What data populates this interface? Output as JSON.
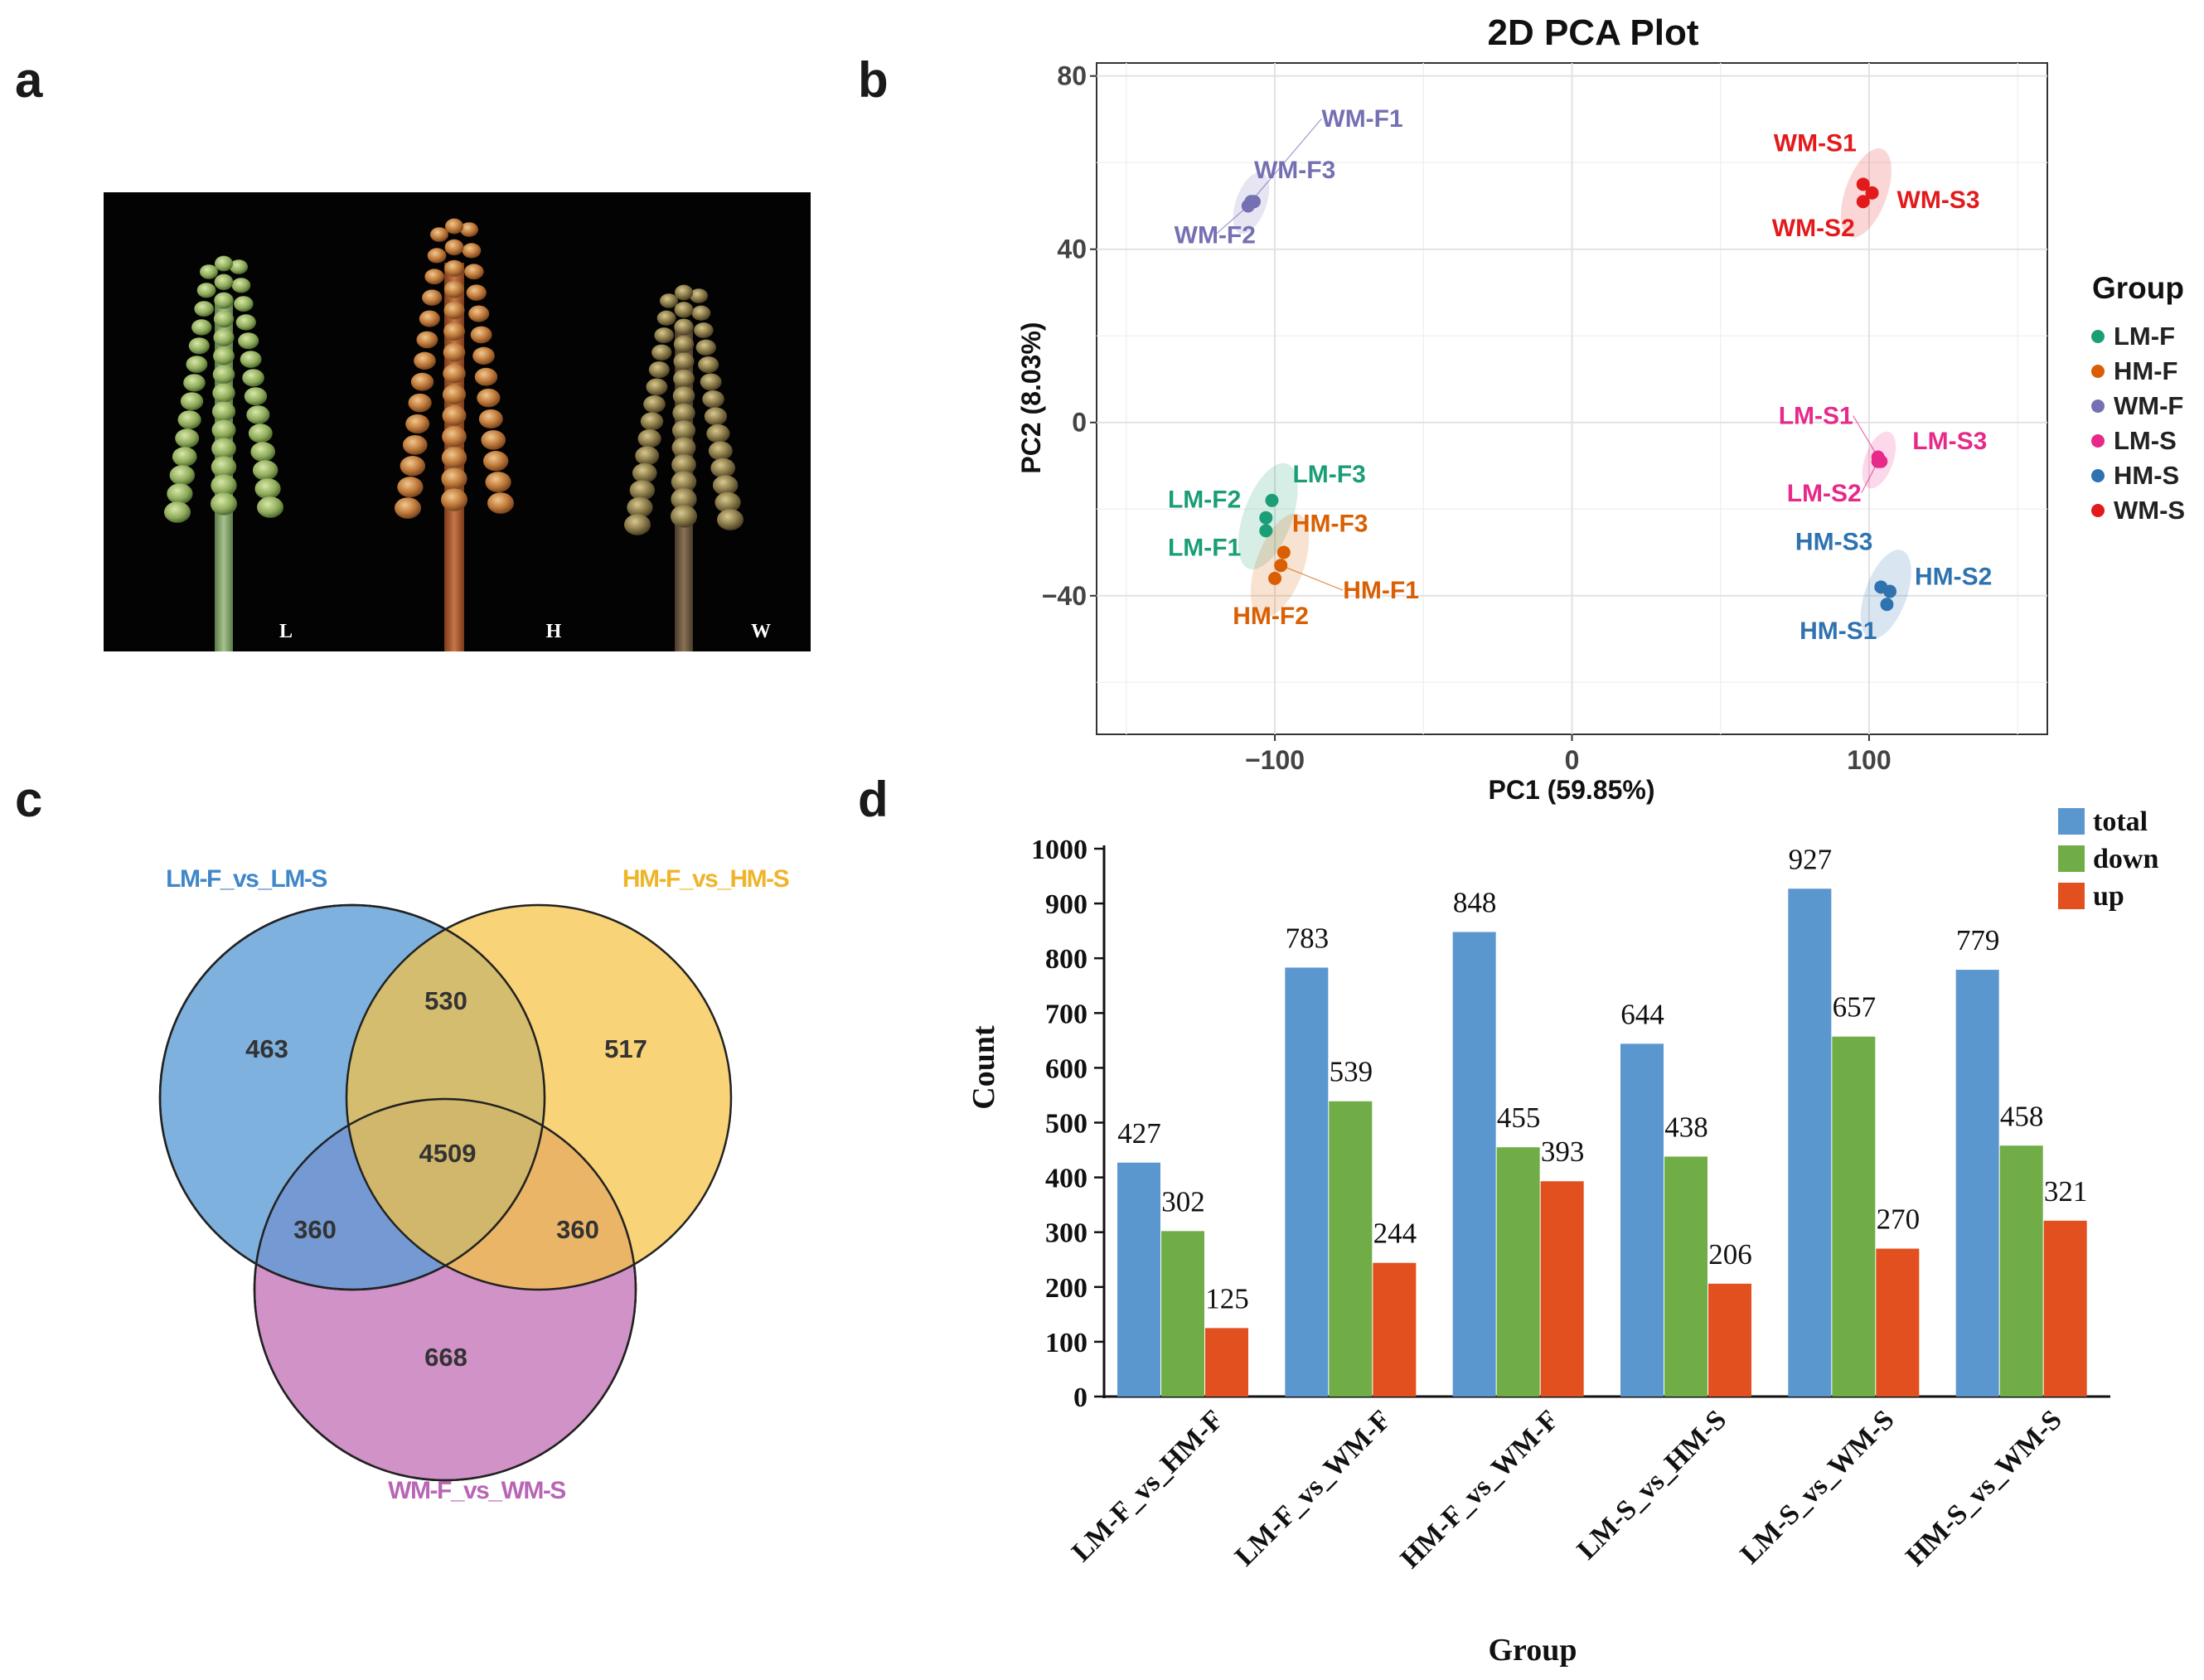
{
  "panel_letters": {
    "a": "a",
    "b": "b",
    "c": "c",
    "d": "d"
  },
  "photo": {
    "labels": [
      "L",
      "H",
      "W"
    ]
  },
  "chart_data": [
    {
      "type": "scatter",
      "title": "2D PCA Plot",
      "xlabel": "PC1 (59.85%)",
      "ylabel": "PC2 (8.03%)",
      "xlim": [
        -160,
        160
      ],
      "ylim": [
        -72,
        83
      ],
      "xticks": [
        -100,
        0,
        100
      ],
      "xtick_labels": [
        "−100",
        "0",
        "100"
      ],
      "yticks": [
        -40,
        0,
        40,
        80
      ],
      "ytick_labels": [
        "−40",
        "0",
        "40",
        "80"
      ],
      "grid": true,
      "legend": {
        "title": "Group",
        "position": "right"
      },
      "series": [
        {
          "name": "LM-F",
          "color": "#1b9e77",
          "points": [
            {
              "label": "LM-F1",
              "x": -103,
              "y": -25
            },
            {
              "label": "LM-F2",
              "x": -103,
              "y": -22
            },
            {
              "label": "LM-F3",
              "x": -101,
              "y": -18
            }
          ]
        },
        {
          "name": "HM-F",
          "color": "#d95f02",
          "points": [
            {
              "label": "HM-F1",
              "x": -98,
              "y": -33
            },
            {
              "label": "HM-F2",
              "x": -100,
              "y": -36
            },
            {
              "label": "HM-F3",
              "x": -97,
              "y": -30
            }
          ]
        },
        {
          "name": "WM-F",
          "color": "#7570b3",
          "points": [
            {
              "label": "WM-F1",
              "x": -108,
              "y": 51
            },
            {
              "label": "WM-F2",
              "x": -109,
              "y": 50
            },
            {
              "label": "WM-F3",
              "x": -107,
              "y": 51
            }
          ]
        },
        {
          "name": "LM-S",
          "color": "#e7298a",
          "points": [
            {
              "label": "LM-S1",
              "x": 103,
              "y": -8
            },
            {
              "label": "LM-S2",
              "x": 103,
              "y": -9
            },
            {
              "label": "LM-S3",
              "x": 104,
              "y": -9
            }
          ]
        },
        {
          "name": "HM-S",
          "color": "#2f72b0",
          "points": [
            {
              "label": "HM-S1",
              "x": 106,
              "y": -42
            },
            {
              "label": "HM-S2",
              "x": 107,
              "y": -39
            },
            {
              "label": "HM-S3",
              "x": 104,
              "y": -38
            }
          ]
        },
        {
          "name": "WM-S",
          "color": "#e31a1c",
          "points": [
            {
              "label": "WM-S1",
              "x": 98,
              "y": 55
            },
            {
              "label": "WM-S2",
              "x": 98,
              "y": 51
            },
            {
              "label": "WM-S3",
              "x": 101,
              "y": 53
            }
          ]
        }
      ]
    },
    {
      "type": "venn",
      "sets": [
        {
          "name": "LM-F_vs_LM-S",
          "color": "#5b9bd5",
          "text_color": "#3f87c8"
        },
        {
          "name": "HM-F_vs_HM-S",
          "color": "#f5c242",
          "text_color": "#efb52a"
        },
        {
          "name": "WM-F_vs_WM-S",
          "color": "#c97fbe",
          "text_color": "#b865b5"
        }
      ],
      "regions": [
        {
          "sets": [
            "LM-F_vs_LM-S"
          ],
          "value": 463
        },
        {
          "sets": [
            "HM-F_vs_HM-S"
          ],
          "value": 517
        },
        {
          "sets": [
            "WM-F_vs_WM-S"
          ],
          "value": 668
        },
        {
          "sets": [
            "LM-F_vs_LM-S",
            "HM-F_vs_HM-S"
          ],
          "value": 530
        },
        {
          "sets": [
            "LM-F_vs_LM-S",
            "WM-F_vs_WM-S"
          ],
          "value": 360
        },
        {
          "sets": [
            "HM-F_vs_HM-S",
            "WM-F_vs_WM-S"
          ],
          "value": 360
        },
        {
          "sets": [
            "LM-F_vs_LM-S",
            "HM-F_vs_HM-S",
            "WM-F_vs_WM-S"
          ],
          "value": 4509
        }
      ]
    },
    {
      "type": "bar",
      "xlabel": "Group",
      "ylabel": "Count",
      "ylim": [
        0,
        1000
      ],
      "yticks": [
        0,
        100,
        200,
        300,
        400,
        500,
        600,
        700,
        800,
        900,
        1000
      ],
      "categories": [
        "LM-F_vs_HM-F",
        "LM-F_vs_WM-F",
        "HM-F_vs_WM-F",
        "LM-S_vs_HM-S",
        "LM-S_vs_WM-S",
        "HM-S_vs_WM-S"
      ],
      "legend": {
        "position": "top-right"
      },
      "grid": false,
      "series": [
        {
          "name": "total",
          "color": "#5b97cf",
          "values": [
            427,
            783,
            848,
            644,
            927,
            779
          ]
        },
        {
          "name": "down",
          "color": "#70ad47",
          "values": [
            302,
            539,
            455,
            438,
            657,
            458
          ]
        },
        {
          "name": "up",
          "color": "#e2501f",
          "values": [
            125,
            244,
            393,
            206,
            270,
            321
          ]
        }
      ]
    }
  ]
}
